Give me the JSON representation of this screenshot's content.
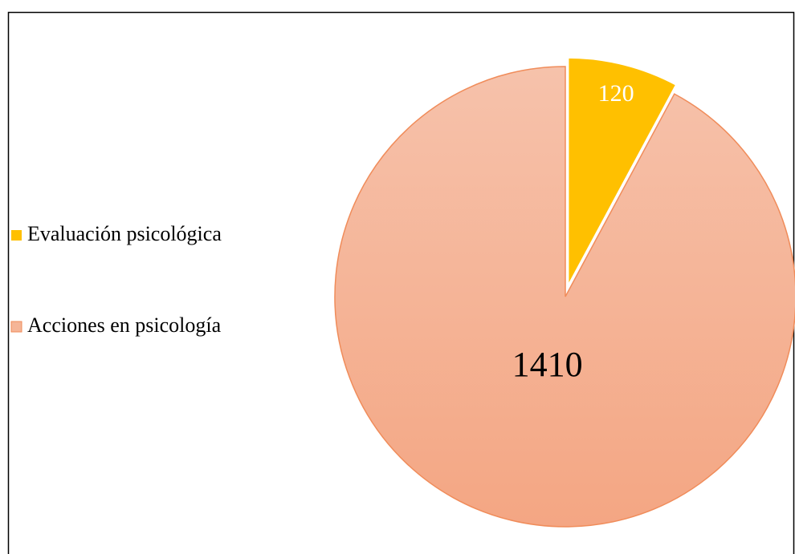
{
  "chart_data": {
    "type": "pie",
    "categories": [
      "Evaluación psicológica",
      "Acciones en psicología"
    ],
    "values": [
      120,
      1410
    ],
    "colors": [
      "#ffc000",
      "#f5b597"
    ],
    "legend": "left"
  }
}
